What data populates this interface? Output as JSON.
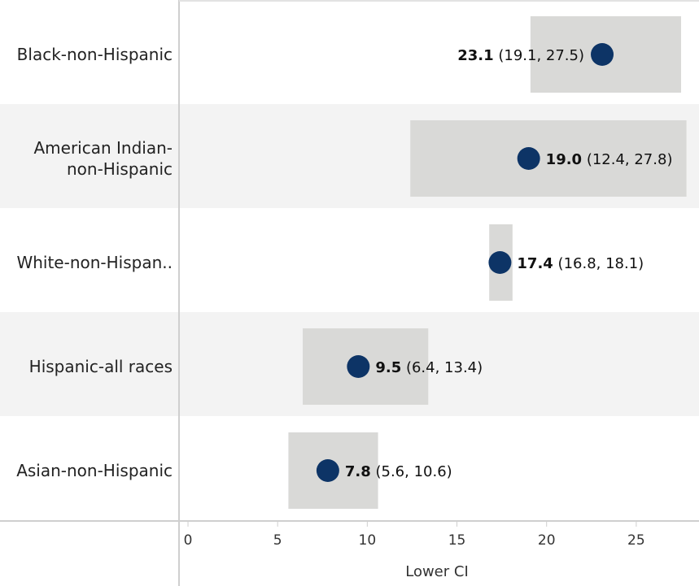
{
  "chart_data": {
    "type": "scatter",
    "title": "",
    "xlabel": "Lower CI",
    "ylabel": "",
    "xlim": [
      -0.5,
      28.5
    ],
    "xticks": [
      0,
      5,
      10,
      15,
      20,
      25
    ],
    "grid": false,
    "categories": [
      [
        "Black-non-Hispanic"
      ],
      [
        "American Indian-",
        "non-Hispanic"
      ],
      [
        "White-non-Hispan.."
      ],
      [
        "Hispanic-all races"
      ],
      [
        "Asian-non-Hispanic"
      ]
    ],
    "points": [
      {
        "value": 23.1,
        "value_text": "23.1",
        "lower": 19.1,
        "upper": 27.5,
        "ci_text": "(19.1, 27.5)",
        "label_side": "left"
      },
      {
        "value": 19.0,
        "value_text": "19.0",
        "lower": 12.4,
        "upper": 27.8,
        "ci_text": "(12.4, 27.8)",
        "label_side": "right"
      },
      {
        "value": 17.4,
        "value_text": "17.4",
        "lower": 16.8,
        "upper": 18.1,
        "ci_text": "(16.8, 18.1)",
        "label_side": "right"
      },
      {
        "value": 9.5,
        "value_text": "9.5",
        "lower": 6.4,
        "upper": 13.4,
        "ci_text": "(6.4, 13.4)",
        "label_side": "right"
      },
      {
        "value": 7.8,
        "value_text": "7.8",
        "lower": 5.6,
        "upper": 10.6,
        "ci_text": "(5.6, 10.6)",
        "label_side": "right"
      }
    ],
    "colors": {
      "point": "#0d3466",
      "ci_band": "#d9d9d7",
      "row_alt": "#f3f3f3",
      "axis": "#cfcfcf"
    }
  }
}
